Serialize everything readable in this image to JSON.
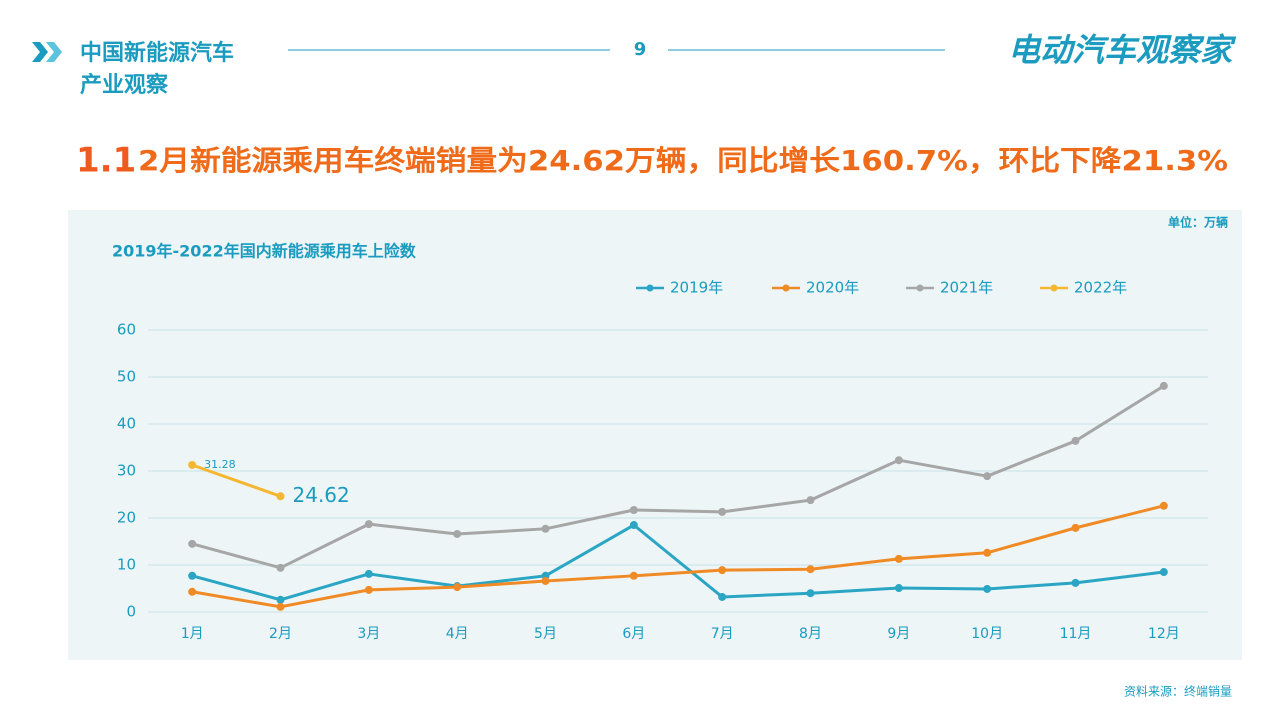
{
  "header": {
    "title_lines": [
      "中国新能源汽车",
      "产业观察"
    ],
    "page_number": "9",
    "brand": "电动汽车观察家"
  },
  "headline": {
    "number": "1.1",
    "text": "2月新能源乘用车终端销量为24.62万辆，同比增长160.7%，环比下降21.3%"
  },
  "unit": "单位：万辆",
  "source": "资料来源：终端销量",
  "chart_data": {
    "type": "line",
    "title": "2019年-2022年国内新能源乘用车上险数",
    "categories": [
      "1月",
      "2月",
      "3月",
      "4月",
      "5月",
      "6月",
      "7月",
      "8月",
      "9月",
      "10月",
      "11月",
      "12月"
    ],
    "series": [
      {
        "name": "2019年",
        "color": "#2aa5c4",
        "values": [
          7.7,
          2.6,
          8.1,
          5.5,
          7.7,
          18.5,
          3.2,
          4.0,
          5.1,
          4.9,
          6.2,
          8.5
        ]
      },
      {
        "name": "2020年",
        "color": "#f08a24",
        "values": [
          4.3,
          1.1,
          4.7,
          5.3,
          6.6,
          7.7,
          8.9,
          9.1,
          11.3,
          12.6,
          17.9,
          22.6
        ]
      },
      {
        "name": "2021年",
        "color": "#a6a6a6",
        "values": [
          14.5,
          9.4,
          18.7,
          16.6,
          17.7,
          21.7,
          21.3,
          23.8,
          32.3,
          28.9,
          36.4,
          48.1
        ]
      },
      {
        "name": "2022年",
        "color": "#f5b731",
        "values": [
          31.28,
          24.62,
          null,
          null,
          null,
          null,
          null,
          null,
          null,
          null,
          null,
          null
        ],
        "data_labels": true
      }
    ],
    "ylim": [
      0,
      60
    ],
    "yticks": [
      0,
      10,
      20,
      30,
      40,
      50,
      60
    ],
    "grid": true,
    "legend": "top"
  }
}
